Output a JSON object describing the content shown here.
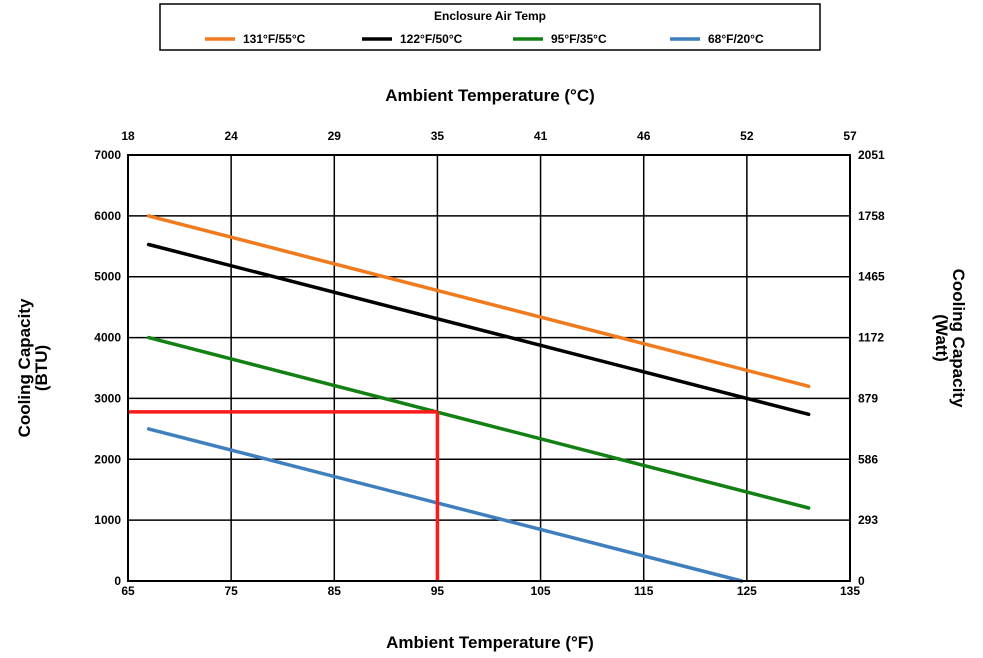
{
  "chart_data": {
    "type": "line",
    "legend": {
      "title": "Enclosure Air Temp",
      "placement": "top-center"
    },
    "x_bottom": {
      "label": "Ambient Temperature (°F)",
      "range": [
        65,
        135
      ],
      "ticks": [
        "65",
        "75",
        "85",
        "95",
        "105",
        "115",
        "125",
        "135"
      ]
    },
    "x_top": {
      "label": "Ambient Temperature (°C)",
      "ticks": [
        "18",
        "24",
        "29",
        "35",
        "41",
        "46",
        "52",
        "57"
      ]
    },
    "y_left": {
      "label_line1": "Cooling Capacity",
      "label_line2": "(BTU)",
      "range": [
        0,
        7000
      ],
      "ticks": [
        "0",
        "1000",
        "2000",
        "3000",
        "4000",
        "5000",
        "6000",
        "7000"
      ]
    },
    "y_right": {
      "label_line1": "Cooling Capacity",
      "label_line2": "(Watt)",
      "ticks": [
        "0",
        "293",
        "586",
        "879",
        "1172",
        "1465",
        "1758",
        "2051"
      ]
    },
    "grid": true,
    "series": [
      {
        "name": "131°F/55°C",
        "color": "#f07a1e",
        "x": [
          67,
          131
        ],
        "y": [
          6000,
          3200
        ]
      },
      {
        "name": "122°F/50°C",
        "color": "#000000",
        "x": [
          67,
          131
        ],
        "y": [
          5530,
          2740
        ]
      },
      {
        "name": "95°F/35°C",
        "color": "#128012",
        "x": [
          67,
          131
        ],
        "y": [
          4000,
          1200
        ]
      },
      {
        "name": "68°F/20°C",
        "color": "#3f7fbe",
        "x": [
          67,
          124.5
        ],
        "y": [
          2500,
          0
        ]
      }
    ],
    "highlight": {
      "color": "#ff1a1a",
      "x": 95,
      "y": 2780
    }
  }
}
